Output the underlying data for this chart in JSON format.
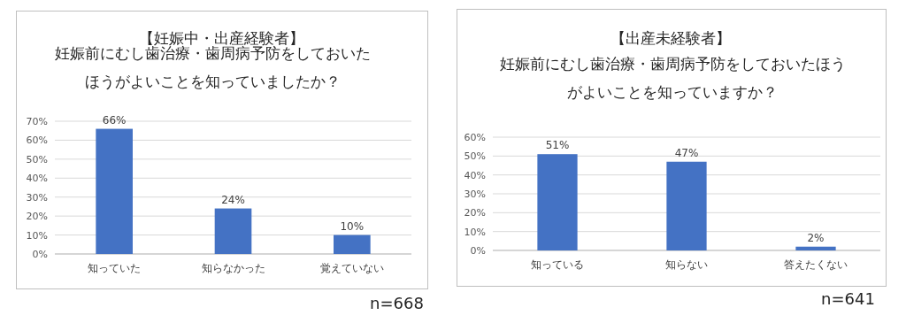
{
  "chart_data": [
    {
      "type": "bar",
      "title": "【妊娠中・出産経験者】",
      "subtitle": "妊娠前にむし歯治療・歯周病予防をしておいたほうがよいことを知っていましたか？",
      "categories": [
        "知っていた",
        "知らなかった",
        "覚えていない"
      ],
      "values": [
        66,
        24,
        10
      ],
      "value_labels": [
        "66%",
        "24%",
        "10%"
      ],
      "color": "#4472c4",
      "ylim": [
        0,
        70
      ],
      "yticks": [
        {
          "value": 0,
          "label": "0%"
        },
        {
          "value": 10,
          "label": "10%"
        },
        {
          "value": 20,
          "label": "20%"
        },
        {
          "value": 30,
          "label": "30%"
        },
        {
          "value": 40,
          "label": "40%"
        },
        {
          "value": 50,
          "label": "50%"
        },
        {
          "value": 60,
          "label": "60%"
        },
        {
          "value": 70,
          "label": "70%"
        }
      ],
      "grid": "y",
      "annotations": [
        "n=668"
      ]
    },
    {
      "type": "bar",
      "title": "【出産未経験者】",
      "subtitle": "妊娠前にむし歯治療・歯周病予防をしておいたほうがよいことを知っていますか？",
      "categories": [
        "知っている",
        "知らない",
        "答えたくない"
      ],
      "values": [
        51,
        47,
        2
      ],
      "value_labels": [
        "51%",
        "47%",
        "2%"
      ],
      "color": "#4472c4",
      "ylim": [
        0,
        60
      ],
      "yticks": [
        {
          "value": 0,
          "label": "0%"
        },
        {
          "value": 10,
          "label": "10%"
        },
        {
          "value": 20,
          "label": "20%"
        },
        {
          "value": 30,
          "label": "30%"
        },
        {
          "value": 40,
          "label": "40%"
        },
        {
          "value": 50,
          "label": "50%"
        },
        {
          "value": 60,
          "label": "60%"
        }
      ],
      "grid": "y",
      "annotations": [
        "n=641"
      ]
    }
  ]
}
